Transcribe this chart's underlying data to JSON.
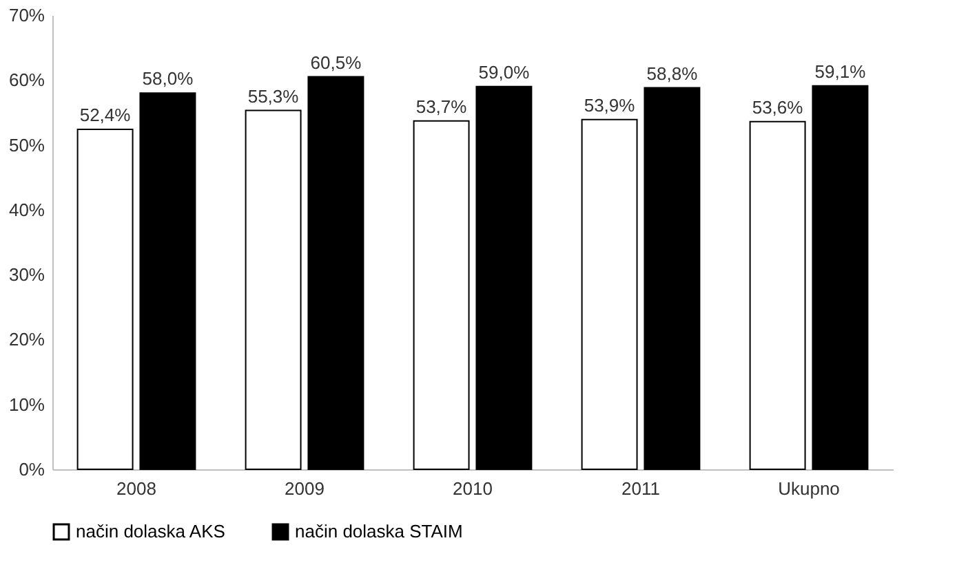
{
  "chart_data": {
    "type": "bar",
    "categories": [
      "2008",
      "2009",
      "2010",
      "2011",
      "Ukupno"
    ],
    "series": [
      {
        "name": "način dolaska AKS",
        "color": "#ffffff",
        "values": [
          52.4,
          55.3,
          53.7,
          53.9,
          53.6
        ],
        "value_labels": [
          "52,4%",
          "55,3%",
          "53,7%",
          "53,9%",
          "53,6%"
        ]
      },
      {
        "name": "način dolaska STAIM",
        "color": "#000000",
        "values": [
          58.0,
          60.5,
          59.0,
          58.8,
          59.1
        ],
        "value_labels": [
          "58,0%",
          "60,5%",
          "59,0%",
          "58,8%",
          "59,1%"
        ]
      }
    ],
    "ylim": [
      0,
      70
    ],
    "yticks": [
      {
        "value": 0,
        "label": "0%"
      },
      {
        "value": 10,
        "label": "10%"
      },
      {
        "value": 20,
        "label": "20%"
      },
      {
        "value": 30,
        "label": "30%"
      },
      {
        "value": 40,
        "label": "40%"
      },
      {
        "value": 50,
        "label": "50%"
      },
      {
        "value": 60,
        "label": "60%"
      },
      {
        "value": 70,
        "label": "70%"
      }
    ],
    "grid": false,
    "legend": "bottom"
  }
}
